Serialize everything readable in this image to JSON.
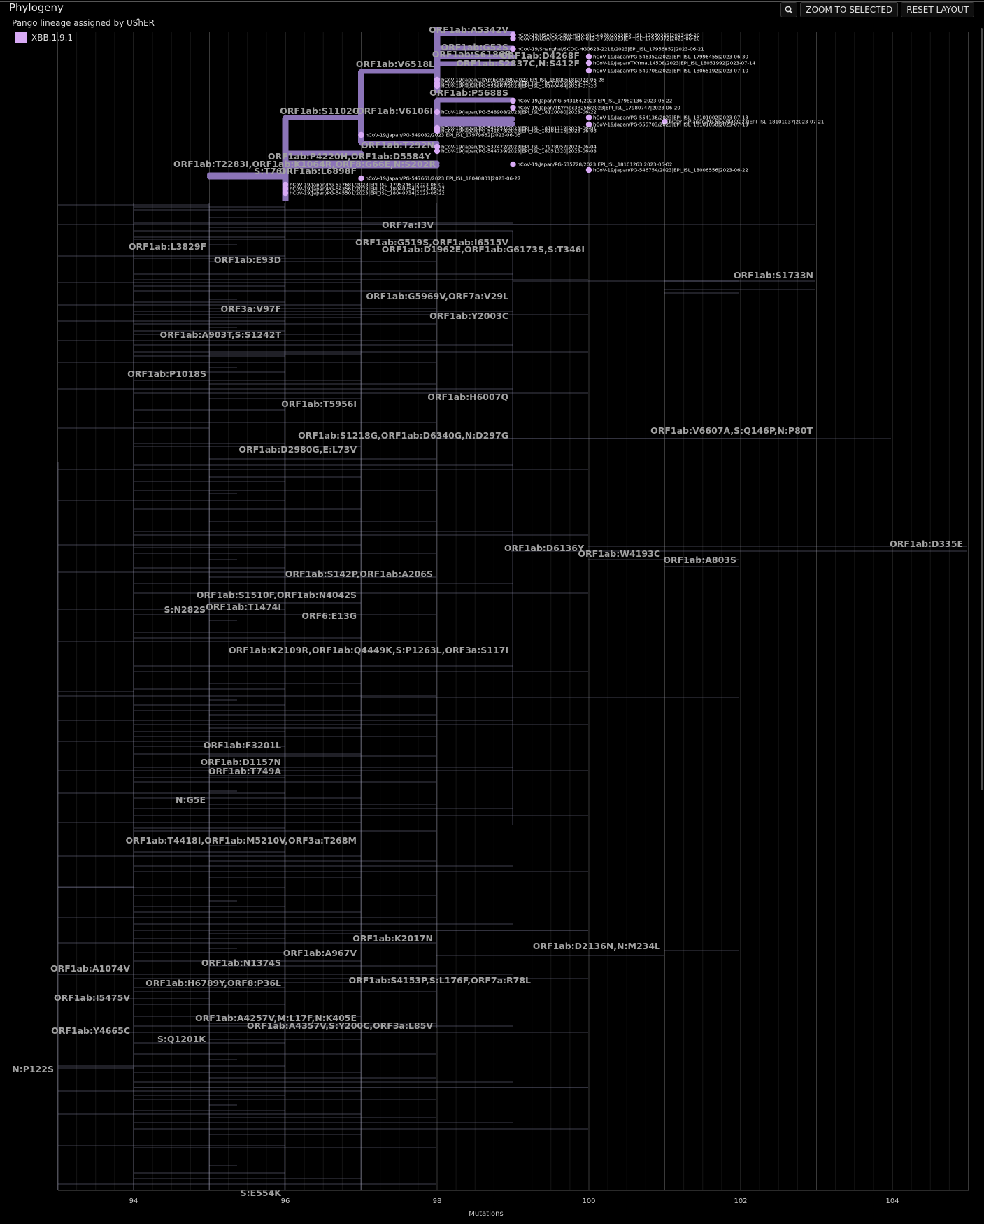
{
  "panel": {
    "title": "Phylogeny"
  },
  "toolbar": {
    "search_icon": "magnifier-icon",
    "zoom_label": "ZOOM TO SELECTED",
    "reset_label": "RESET LAYOUT"
  },
  "legend": {
    "title": "Pango lineage assigned by UShER",
    "collapse_icon": "chevron-up-icon",
    "items": [
      {
        "label": "XBB.1.9.1",
        "color": "#d8aaf5"
      }
    ]
  },
  "colors": {
    "background": "#000000",
    "branch": "#d2d2e6",
    "highlight": "#8c74b8",
    "node": "#d8aaf5",
    "mutation_text": "#a2a2a2"
  },
  "chart_data": {
    "type": "tree",
    "xlabel": "Mutations",
    "x_ticks": [
      94,
      96,
      98,
      100,
      102,
      104
    ],
    "xlim": [
      92.0,
      105.0
    ],
    "highlighted_branches": [
      {
        "label": "S:T76I",
        "x0": 95,
        "x1": 96
      },
      {
        "label": "ORF1ab:S1102G",
        "x0": 96,
        "x1": 97
      },
      {
        "label": "ORF1ab:V6518L",
        "x0": 97,
        "x1": 98
      },
      {
        "label": "ORF1ab:V6106I",
        "x0": 97,
        "x1": 98
      },
      {
        "label": "ORF1ab:A5342V",
        "x0": 98,
        "x1": 99
      },
      {
        "label": "ORF1ab:P5688S",
        "x0": 98,
        "x1": 99
      },
      {
        "label": "ORF1ab:T292N",
        "x0": 97,
        "x1": 98
      },
      {
        "label": "ORF1ab:P4220H,ORF1ab:D5584Y",
        "x0": 96,
        "x1": 98
      },
      {
        "label": "ORF1ab:L6898F",
        "x0": 95,
        "x1": 96
      }
    ],
    "mutation_labels": [
      "ORF1ab:A5342V",
      "ORF1ab:G52S",
      "ORF1ab:S6186F",
      "ORF1ab:D4268F",
      "ORF1ab:S2837C,N:S412F",
      "ORF1ab:V6518L",
      "ORF1ab:P5688S",
      "ORF1ab:S1102G",
      "ORF1ab:V6106I",
      "ORF1ab:T292N",
      "ORF1ab:P4220H,ORF1ab:D5584Y",
      "ORF1ab:T2283I,ORF1ab:K1064R,ORF8:G66E,N:S202R",
      "S:T76I",
      "ORF1ab:L6898F",
      "ORF7a:I3V",
      "ORF1ab:G519S,ORF1ab:I6515V",
      "ORF1ab:D1962E,ORF1ab:G6173S,S:T346I",
      "ORF1ab:L3829F",
      "ORF1ab:E93D",
      "ORF1ab:S1733N",
      "ORF1ab:G5969V,ORF7a:V29L",
      "ORF3a:V97F",
      "ORF1ab:Y2003C",
      "ORF1ab:A903T,S:S1242T",
      "ORF1ab:P1018S",
      "ORF1ab:H6007Q",
      "ORF1ab:T5956I",
      "ORF1ab:V6607A,S:Q146P,N:P80T",
      "ORF1ab:S1218G,ORF1ab:D6340G,N:D297G",
      "ORF1ab:D2980G,E:L73V",
      "ORF1ab:D335E",
      "ORF1ab:D6136Y",
      "ORF1ab:W4193C",
      "ORF1ab:A803S",
      "ORF1ab:S142P,ORF1ab:A206S",
      "ORF1ab:S1510F,ORF1ab:N4042S",
      "ORF1ab:T1474I",
      "S:N282S",
      "ORF6:E13G",
      "ORF1ab:K2109R,ORF1ab:Q4449K,S:P1263L,ORF3a:S117I",
      "ORF1ab:F3201L",
      "ORF1ab:D1157N",
      "ORF1ab:T749A",
      "N:G5E",
      "ORF1ab:T4418I,ORF1ab:M5210V,ORF3a:T268M",
      "ORF1ab:K2017N",
      "ORF1ab:D2136N,N:M234L",
      "ORF1ab:A967V",
      "ORF1ab:N1374S",
      "ORF1ab:A1074V",
      "ORF1ab:H6789Y,ORF8:P36L",
      "ORF1ab:S4153P,S:L176F,ORF7a:R78L",
      "ORF1ab:I5475V",
      "ORF1ab:A4257V,M:L17F,N:K405E",
      "ORF1ab:A4357V,S:Y200C,ORF3a:L85V",
      "ORF1ab:Y4665C",
      "S:Q1201K",
      "N:P122S",
      "S:E554K"
    ],
    "selected_leaves": [
      {
        "name": "hCoV-19/USA/CA-CBW-HJ10-012-4878/2023|EPI_ISL_17950399|2023-06-20",
        "mutations": 99
      },
      {
        "name": "hCoV-19/USA/CA-CBW-HJ10-012-3759/2023|EPI_ISL_17950372|2023-06-20",
        "mutations": 99
      },
      {
        "name": "hCoV-19/Shanghai/SCDC-HG0623-2218/2023|EPI_ISL_17956852|2023-06-21",
        "mutations": 99
      },
      {
        "name": "hCoV-19/Japan/PG-546352/2023|EPI_ISL_17996455|2023-06-30",
        "mutations": 100
      },
      {
        "name": "hCoV-19/Japan/TKYmat14508/2023|EPI_ISL_18051992|2023-07-14",
        "mutations": 100
      },
      {
        "name": "hCoV-19/Japan/PG-549708/2023|EPI_ISL_18065192|2023-07-10",
        "mutations": 100
      },
      {
        "name": "hCoV-19/Japan/TKYmbc38380/2023|EPI_ISL_18000618|2023-06-28",
        "mutations": 98
      },
      {
        "name": "hCoV-19/Japan/PG-552969/2023|EPI_ISL_18077152|2023-07-10",
        "mutations": 98
      },
      {
        "name": "hCoV-19/Japan/PG-553867/2023|EPI_ISL_18100464|2023-07-20",
        "mutations": 98
      },
      {
        "name": "hCoV-19/Japan/PG-543164/2023|EPI_ISL_17982136|2023-06-22",
        "mutations": 99
      },
      {
        "name": "hCoV-19/Japan/TKYmbc38256/2023|EPI_ISL_17980747|2023-06-20",
        "mutations": 99
      },
      {
        "name": "hCoV-19/Japan/PG-548908/2023|EPI_ISL_18110080|2023-06-22",
        "mutations": 98
      },
      {
        "name": "hCoV-19/Japan/PG-554136/2023|EPI_ISL_18101002|2023-07-13",
        "mutations": 100
      },
      {
        "name": "hCoV-19/Japan/PG-555704/2023|EPI_ISL_18101037|2023-07-21",
        "mutations": 101
      },
      {
        "name": "hCoV-19/Japan/PG-555703/2023|EPI_ISL_18101050|2023-07-13",
        "mutations": 100
      },
      {
        "name": "hCoV-19/Japan/PG-541951/2023|EPI_ISL_18101119|2023-06-01",
        "mutations": 98
      },
      {
        "name": "hCoV-19/Japan/PG-541878/2023|EPI_ISL_18101116|2023-06-08",
        "mutations": 98
      },
      {
        "name": "hCoV-19/Japan/PG-549082/2023|EPI_ISL_17979662|2023-06-05",
        "mutations": 97
      },
      {
        "name": "hCoV-19/Japan/PG-537472/2023|EPI_ISL_17978057|2023-06-04",
        "mutations": 98
      },
      {
        "name": "hCoV-19/Japan/PG-544739/2023|EPI_ISL_18051320|2023-06-08",
        "mutations": 98
      },
      {
        "name": "hCoV-19/Japan/PG-535728/2023|EPI_ISL_18101263|2023-06-02",
        "mutations": 99
      },
      {
        "name": "hCoV-19/Japan/PG-546754/2023|EPI_ISL_18006556|2023-06-22",
        "mutations": 100
      },
      {
        "name": "hCoV-19/Japan/PG-547661/2023|EPI_ISL_18040801|2023-06-27",
        "mutations": 97
      },
      {
        "name": "hCoV-19/Japan/PG-537681/2023|EPI_ISL_17952461|2023-06-01",
        "mutations": 96
      },
      {
        "name": "hCoV-19/Japan/PG-543561/2023|EPI_ISL_18040754|2023-06-22",
        "mutations": 96
      },
      {
        "name": "hCoV-19/Japan/PG-545501/2023|EPI_ISL_18040734|2023-06-22",
        "mutations": 96
      }
    ]
  }
}
